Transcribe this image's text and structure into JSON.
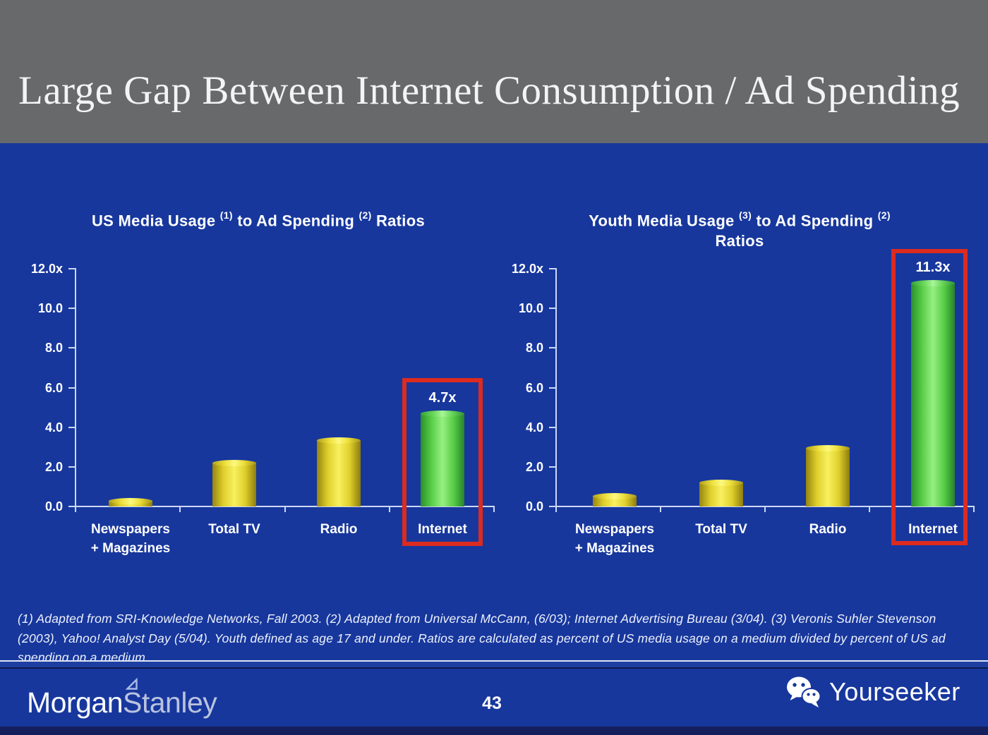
{
  "header": {
    "title": "Large Gap Between Internet Consumption / Ad Spending"
  },
  "footnote": "(1) Adapted from SRI-Knowledge Networks, Fall 2003.  (2) Adapted from Universal McCann, (6/03); Internet Advertising Bureau (3/04). (3) Veronis Suhler Stevenson (2003), Yahoo! Analyst Day (5/04).  Youth defined as age 17 and under.  Ratios are calculated as percent of US media usage on a medium divided by percent of US ad spending on a medium.",
  "footer": {
    "brand_part1": "Morgan",
    "brand_part2": "Stanley",
    "page_number": "43",
    "watermark_label": "Yourseeker",
    "watermark_icon": "wechat-icon"
  },
  "colors": {
    "slide_blue": "#17379d",
    "header_gray": "#67696b",
    "bar_yellow": "#f0e23a",
    "bar_green": "#58d13e",
    "highlight_red": "#dc2b1f",
    "axis_line": "#ccd8f2",
    "text_white": "#ffffff"
  },
  "chart_data": [
    {
      "type": "bar",
      "title": "US Media Usage (1) to Ad Spending (2) Ratios",
      "title_lines": [
        [
          {
            "t": "US Media Usage "
          },
          {
            "t": "(1)",
            "sup": true
          },
          {
            "t": " to Ad Spending "
          },
          {
            "t": "(2)",
            "sup": true
          },
          {
            "t": " Ratios"
          }
        ]
      ],
      "categories": [
        "Newspapers + Magazines",
        "Total TV",
        "Radio",
        "Internet"
      ],
      "category_lines": [
        [
          "Newspapers",
          "+ Magazines"
        ],
        [
          "Total TV"
        ],
        [
          "Radio"
        ],
        [
          "Internet"
        ]
      ],
      "values": [
        0.3,
        2.2,
        3.35,
        4.7
      ],
      "bar_colors": [
        "yellow",
        "yellow",
        "yellow",
        "green"
      ],
      "highlight_index": 3,
      "highlight_label": "4.7x",
      "xlabel": "",
      "ylabel": "",
      "ylim": [
        0,
        12
      ],
      "ytick_values": [
        12,
        10,
        8,
        6,
        4,
        2,
        0
      ],
      "ytick_labels": [
        "12.0x",
        "10.0",
        "8.0",
        "6.0",
        "4.0",
        "2.0",
        "0.0"
      ],
      "grid": false,
      "legend": "none"
    },
    {
      "type": "bar",
      "title": "Youth Media Usage (3) to Ad Spending (2) Ratios",
      "title_lines": [
        [
          {
            "t": "Youth Media Usage "
          },
          {
            "t": "(3)",
            "sup": true
          },
          {
            "t": " to Ad Spending "
          },
          {
            "t": "(2)",
            "sup": true
          }
        ],
        [
          {
            "t": "Ratios"
          }
        ]
      ],
      "categories": [
        "Newspapers + Magazines",
        "Total TV",
        "Radio",
        "Internet"
      ],
      "category_lines": [
        [
          "Newspapers",
          "+ Magazines"
        ],
        [
          "Total TV"
        ],
        [
          "Radio"
        ],
        [
          "Internet"
        ]
      ],
      "values": [
        0.55,
        1.2,
        2.95,
        11.3
      ],
      "bar_colors": [
        "yellow",
        "yellow",
        "yellow",
        "green"
      ],
      "highlight_index": 3,
      "highlight_label": "11.3x",
      "xlabel": "",
      "ylabel": "",
      "ylim": [
        0,
        12
      ],
      "ytick_values": [
        12,
        10,
        8,
        6,
        4,
        2,
        0
      ],
      "ytick_labels": [
        "12.0x",
        "10.0",
        "8.0",
        "6.0",
        "4.0",
        "2.0",
        "0.0"
      ],
      "grid": false,
      "legend": "none"
    }
  ]
}
